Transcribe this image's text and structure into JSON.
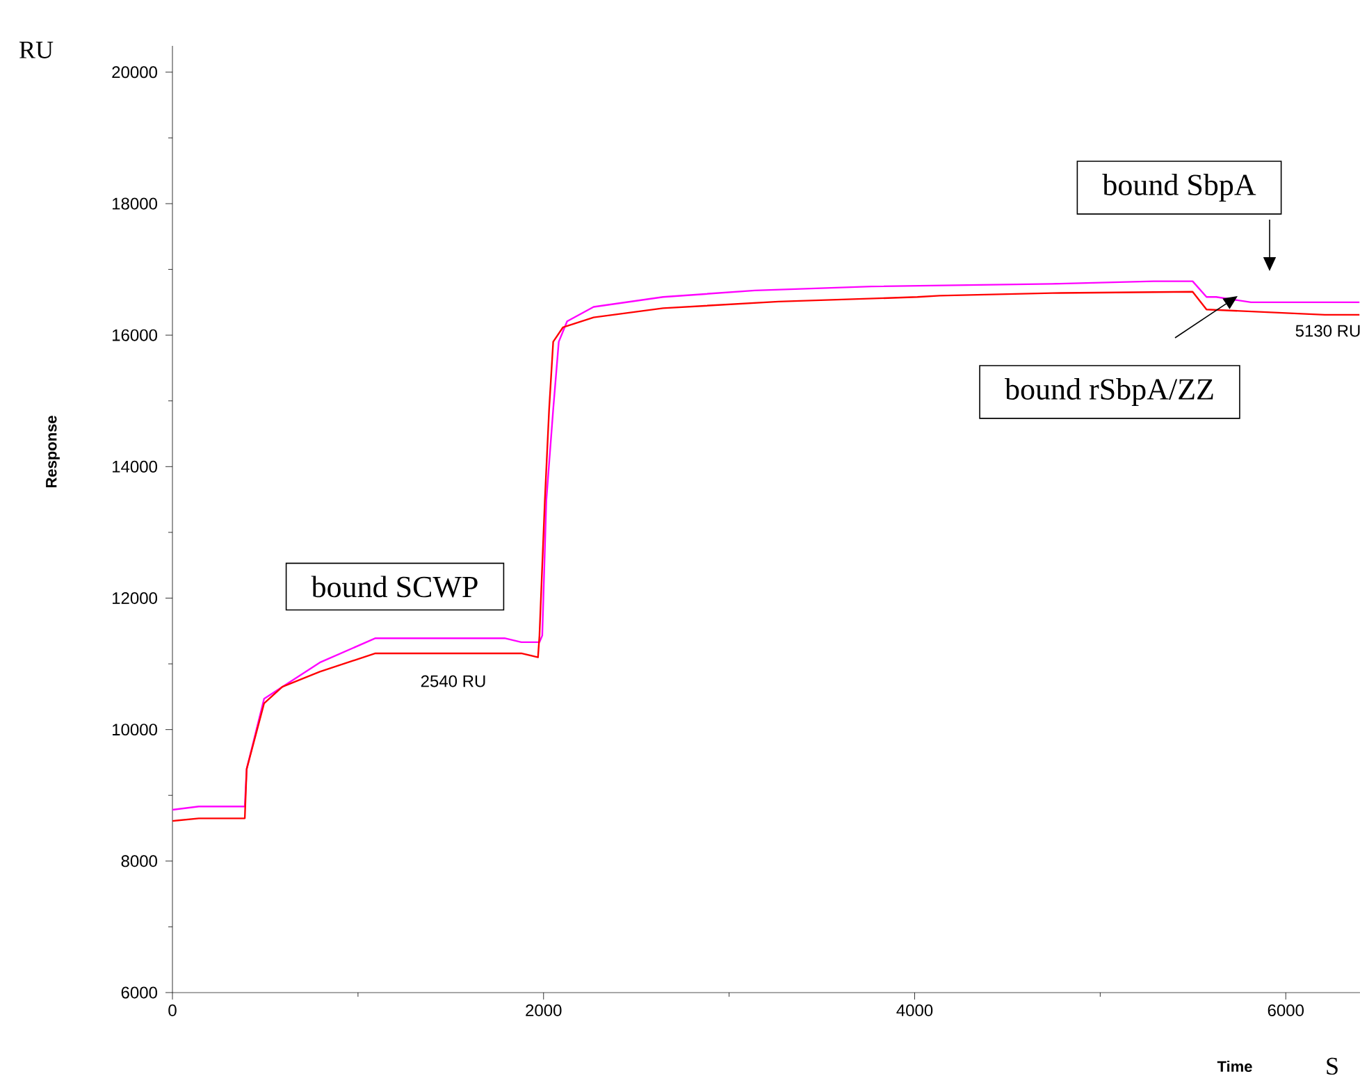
{
  "chart_data": {
    "type": "line",
    "xlabel": "Time",
    "ylabel": "Response",
    "xlim": [
      0,
      6400
    ],
    "ylim": [
      6000,
      20400
    ],
    "xticks": [
      0,
      2000,
      4000,
      6000
    ],
    "yticks": [
      6000,
      8000,
      10000,
      12000,
      14000,
      16000,
      18000,
      20000
    ],
    "series": [
      {
        "color": "#ff00ff",
        "x": [
          0,
          142,
          390,
          400,
          494,
          592,
          794,
          1094,
          1790,
          1880,
          1978,
          1993,
          2015,
          2052,
          2082,
          2127,
          2270,
          2644,
          3139,
          3768,
          4742,
          5288,
          5498,
          5573,
          5625,
          5813,
          6397
        ],
        "values": [
          8780,
          8830,
          8830,
          9400,
          10470,
          10650,
          11020,
          11390,
          11390,
          11330,
          11330,
          11430,
          13490,
          14870,
          15900,
          16210,
          16430,
          16580,
          16680,
          16740,
          16780,
          16820,
          16820,
          16580,
          16580,
          16500,
          16500
        ]
      },
      {
        "color": "#ff0000",
        "x": [
          0,
          142,
          390,
          400,
          494,
          592,
          794,
          1094,
          1880,
          1970,
          1978,
          2007,
          2030,
          2052,
          2105,
          2270,
          2644,
          3266,
          4015,
          4135,
          4742,
          5498,
          5573,
          6210,
          6397
        ],
        "values": [
          8610,
          8650,
          8650,
          9400,
          10400,
          10650,
          10880,
          11160,
          11160,
          11100,
          11430,
          13490,
          14870,
          15900,
          16120,
          16270,
          16410,
          16510,
          16580,
          16600,
          16640,
          16660,
          16390,
          16310,
          16310
        ]
      }
    ],
    "annotations": [
      "bound SCWP",
      "2540 RU",
      "bound SbpA",
      "bound rSbpA/ZZ",
      "5130 RU",
      "RU",
      "S"
    ]
  }
}
